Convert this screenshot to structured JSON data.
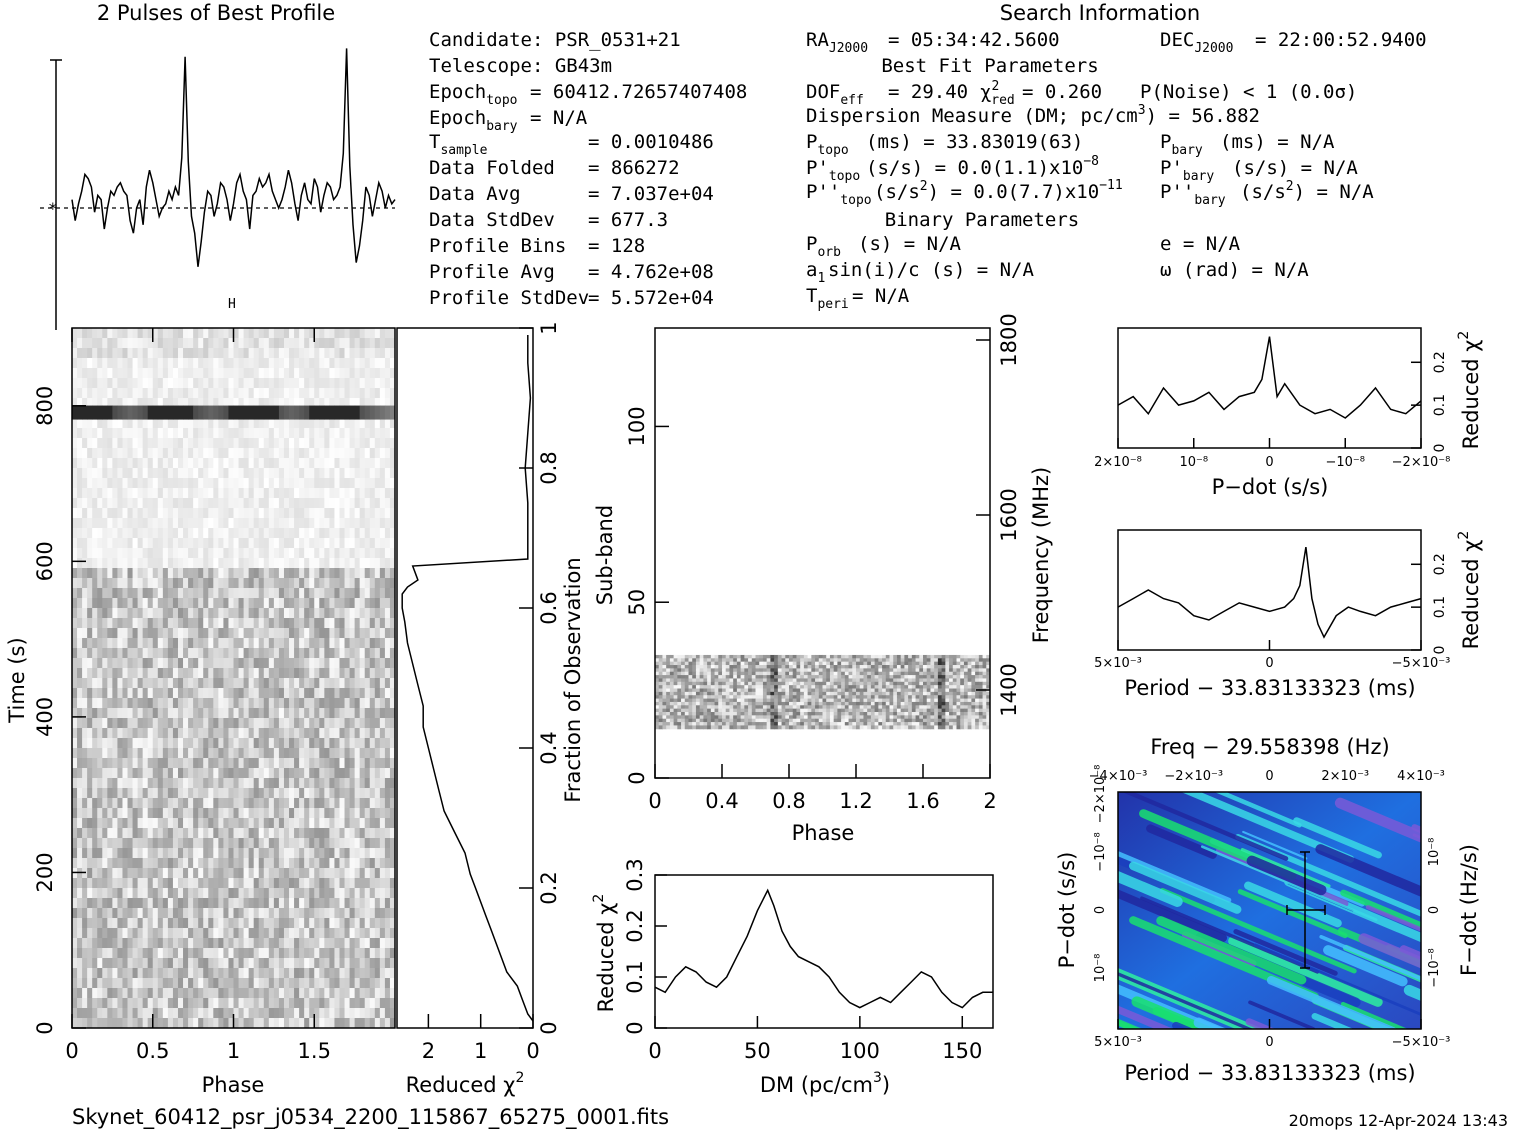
{
  "header": {
    "profile_title": "2 Pulses of Best Profile",
    "search_title": "Search Information",
    "best_fit_title": "Best Fit Parameters",
    "binary_title": "Binary Parameters"
  },
  "info_left": [
    {
      "k": "Candidate:  PSR_0531+21",
      "v": ""
    },
    {
      "k": "Telescope:  GB43m",
      "v": ""
    },
    {
      "k": "Epoch_topo",
      "sub": "topo",
      "v": "= 60412.72657407408"
    },
    {
      "k": "Epoch_bary",
      "sub": "bary",
      "v": "= N/A"
    },
    {
      "k": "T_sample",
      "sub": "sample",
      "v": "=  0.0010486"
    },
    {
      "k": "Data Folded",
      "v": "=  866272"
    },
    {
      "k": "Data Avg",
      "v": "=  7.037e+04"
    },
    {
      "k": "Data StdDev",
      "v": "=  677.3"
    },
    {
      "k": "Profile Bins",
      "v": "=  128"
    },
    {
      "k": "Profile Avg",
      "v": "=  4.762e+08"
    },
    {
      "k": "Profile StdDev",
      "v": "=  5.572e+04"
    }
  ],
  "info_mid": {
    "ra": "RA",
    "ra_sub": "J2000",
    "ra_val": "= 05:34:42.5600",
    "dec": "DEC",
    "dec_sub": "J2000",
    "dec_val": "= 22:00:52.9400",
    "dof": "DOF",
    "dof_sub": "eff",
    "dof_val": "= 29.40",
    "chi_val": "= 0.260",
    "pnoise": "P(Noise) < 1   (0.0σ)",
    "dm": "Dispersion Measure (DM; pc/cm",
    "dm_tail": ") = 56.882",
    "ptopo": "(ms) =  33.83019(63)",
    "pdot_topo": "(s/s) = 0.0(1.1)x10",
    "pdot_exp": "−8",
    "pddot_topo": "(s/s",
    "pddot_tail": ") = 0.0(7.7)x10",
    "pddot_exp": "−11",
    "porb": "(s) = N/A",
    "a1": "sin(i)/c (s) = N/A",
    "tperi": "= N/A",
    "pbary": "(ms) = N/A",
    "pdot_bary": "(s/s) = N/A",
    "pddot_bary": "(s/s",
    "pddot_bary_tail": ") = N/A",
    "ecc": "e = N/A",
    "omega": "ω (rad) = N/A"
  },
  "footer": {
    "filename": "Skynet_60412_psr_j0534_2200_115867_65275_0001.fits",
    "stamp": "20mops 12-Apr-2024 13:43"
  },
  "chart_data": [
    {
      "type": "line",
      "title": "2 Pulses of Best Profile",
      "xlabel": "",
      "ylabel": "",
      "xlim": [
        0,
        2
      ],
      "x": [
        0.0,
        0.02,
        0.04,
        0.06,
        0.08,
        0.1,
        0.12,
        0.14,
        0.16,
        0.18,
        0.2,
        0.22,
        0.24,
        0.26,
        0.28,
        0.3,
        0.32,
        0.34,
        0.36,
        0.38,
        0.4,
        0.42,
        0.44,
        0.46,
        0.48,
        0.5,
        0.52,
        0.54,
        0.56,
        0.58,
        0.6,
        0.62,
        0.64,
        0.66,
        0.68,
        0.7,
        0.72,
        0.74,
        0.76,
        0.78,
        0.8,
        0.82,
        0.84,
        0.86,
        0.88,
        0.9,
        0.92,
        0.94,
        0.96,
        0.98,
        1.0,
        1.02,
        1.04,
        1.06,
        1.08,
        1.1,
        1.12,
        1.14,
        1.16,
        1.18,
        1.2,
        1.22,
        1.24,
        1.26,
        1.28,
        1.3,
        1.32,
        1.34,
        1.36,
        1.38,
        1.4,
        1.42,
        1.44,
        1.46,
        1.48,
        1.5,
        1.52,
        1.54,
        1.56,
        1.58,
        1.6,
        1.62,
        1.64,
        1.66,
        1.68,
        1.7,
        1.72,
        1.74,
        1.76,
        1.78,
        1.8,
        1.82,
        1.84,
        1.86,
        1.88,
        1.9,
        1.92,
        1.94,
        1.96,
        1.98,
        2.0
      ],
      "y": [
        0.2,
        -0.3,
        0.1,
        0.4,
        0.8,
        0.7,
        0.5,
        -0.1,
        0.3,
        0.2,
        -0.5,
        0.0,
        0.4,
        0.3,
        0.5,
        0.6,
        0.4,
        0.3,
        -0.3,
        -0.6,
        0.0,
        0.2,
        -0.4,
        0.5,
        0.9,
        0.6,
        0.2,
        -0.2,
        0.0,
        0.1,
        0.4,
        0.2,
        0.5,
        0.3,
        1.2,
        3.6,
        1.1,
        -0.2,
        -0.6,
        -1.4,
        -0.8,
        -0.1,
        0.4,
        0.3,
        -0.2,
        0.1,
        0.6,
        0.5,
        0.2,
        -0.3,
        0.1,
        0.6,
        0.8,
        0.4,
        0.2,
        -0.5,
        0.3,
        0.4,
        0.7,
        0.5,
        0.6,
        0.8,
        0.4,
        0.2,
        0.0,
        0.2,
        0.5,
        0.9,
        0.6,
        0.1,
        -0.3,
        0.3,
        0.6,
        0.2,
        0.1,
        0.7,
        0.5,
        -0.1,
        0.3,
        0.6,
        0.5,
        0.2,
        0.3,
        0.5,
        1.3,
        3.8,
        1.0,
        -0.4,
        -1.3,
        -0.9,
        -0.3,
        0.5,
        0.3,
        -0.2,
        0.2,
        0.6,
        0.4,
        0.0,
        0.3,
        0.1,
        0.2
      ]
    },
    {
      "type": "heatmap",
      "xlabel": "Phase",
      "ylabel": "Time (s)",
      "y2label": "Fraction of Observation",
      "xlim": [
        0,
        2
      ],
      "ylim": [
        0,
        900
      ],
      "xticks": [
        "0",
        "0.5",
        "1",
        "1.5"
      ],
      "yticks": [
        "0",
        "200",
        "400",
        "600",
        "800"
      ],
      "y2ticks": [
        "0",
        "0.2",
        "0.4",
        "0.6",
        "0.8",
        "1"
      ],
      "dark_band_time": 790,
      "bright_region_time": [
        600,
        785
      ]
    },
    {
      "type": "line",
      "xlabel": "Reduced χ²",
      "xticks": [
        "2",
        "1",
        "0"
      ],
      "xlim": [
        2.6,
        0
      ],
      "ylim": [
        0,
        1
      ],
      "x": [
        0.0,
        0.1,
        0.2,
        0.3,
        0.5,
        0.6,
        0.7,
        0.8,
        0.9,
        1.0,
        1.1,
        1.2,
        1.3,
        1.5,
        1.7,
        1.8,
        1.9,
        2.0,
        2.1,
        2.1,
        2.2,
        2.3,
        2.4,
        2.45,
        2.5,
        2.5,
        2.4,
        2.2,
        2.3,
        0.1,
        0.1,
        0.1,
        0.15,
        0.1,
        0.05,
        0.1,
        0.1
      ],
      "y": [
        0.01,
        0.02,
        0.04,
        0.06,
        0.08,
        0.1,
        0.12,
        0.14,
        0.16,
        0.18,
        0.2,
        0.22,
        0.25,
        0.28,
        0.31,
        0.34,
        0.37,
        0.4,
        0.43,
        0.46,
        0.49,
        0.52,
        0.55,
        0.58,
        0.6,
        0.62,
        0.63,
        0.64,
        0.66,
        0.67,
        0.7,
        0.75,
        0.8,
        0.85,
        0.9,
        0.95,
        0.99
      ]
    },
    {
      "type": "heatmap",
      "xlabel": "Phase",
      "ylabel": "Sub-band",
      "y2label": "Frequency (MHz)",
      "xlim": [
        0,
        2
      ],
      "ylim": [
        0,
        128
      ],
      "xticks": [
        "0",
        "0.4",
        "0.8",
        "1.2",
        "1.6",
        "2"
      ],
      "yticks": [
        "0",
        "50",
        "100"
      ],
      "y2ticks": [
        "1400",
        "1600",
        "1800"
      ],
      "data_subbands": [
        14,
        35
      ]
    },
    {
      "type": "line",
      "xlabel": "DM (pc/cm³)",
      "ylabel": "Reduced χ²",
      "xlim": [
        0,
        165
      ],
      "ylim": [
        0,
        0.3
      ],
      "xticks": [
        "0",
        "50",
        "100",
        "150"
      ],
      "yticks": [
        "0",
        "0.1",
        "0.2",
        "0.3"
      ],
      "x": [
        0,
        5,
        10,
        15,
        20,
        25,
        30,
        35,
        40,
        45,
        50,
        55,
        58,
        62,
        66,
        70,
        75,
        80,
        85,
        90,
        95,
        100,
        105,
        110,
        115,
        120,
        125,
        130,
        135,
        140,
        145,
        150,
        155,
        160,
        165
      ],
      "y": [
        0.08,
        0.07,
        0.1,
        0.12,
        0.11,
        0.09,
        0.08,
        0.1,
        0.14,
        0.18,
        0.23,
        0.27,
        0.24,
        0.19,
        0.16,
        0.14,
        0.13,
        0.12,
        0.1,
        0.07,
        0.05,
        0.04,
        0.05,
        0.06,
        0.05,
        0.07,
        0.09,
        0.11,
        0.1,
        0.07,
        0.05,
        0.04,
        0.06,
        0.07,
        0.07
      ]
    },
    {
      "type": "line",
      "xlabel": "P−dot (s/s)",
      "ylabel": "Reduced χ²",
      "xticks": [
        "2×10⁻⁸",
        "10⁻⁸",
        "0",
        "−10⁻⁸",
        "−2×10⁻⁸"
      ],
      "yticks": [
        "0",
        "0.1",
        "0.2"
      ],
      "xlim": [
        2,
        -2
      ],
      "ylim": [
        0,
        0.28
      ],
      "x": [
        2.0,
        1.8,
        1.6,
        1.4,
        1.2,
        1.0,
        0.8,
        0.6,
        0.4,
        0.2,
        0.1,
        0.0,
        -0.1,
        -0.2,
        -0.4,
        -0.6,
        -0.8,
        -1.0,
        -1.2,
        -1.4,
        -1.6,
        -1.8,
        -2.0
      ],
      "y": [
        0.1,
        0.12,
        0.08,
        0.14,
        0.1,
        0.11,
        0.13,
        0.09,
        0.12,
        0.13,
        0.16,
        0.26,
        0.12,
        0.15,
        0.1,
        0.08,
        0.09,
        0.07,
        0.1,
        0.14,
        0.09,
        0.08,
        0.11
      ]
    },
    {
      "type": "line",
      "title": "",
      "xlabel": "Period − 33.83133323 (ms)",
      "ylabel": "Reduced χ²",
      "xticks": [
        "5×10⁻³",
        "0",
        "−5×10⁻³"
      ],
      "yticks": [
        "0",
        "0.1",
        "0.2"
      ],
      "xlim": [
        5,
        -5
      ],
      "ylim": [
        0,
        0.28
      ],
      "x": [
        5.0,
        4.5,
        4.0,
        3.5,
        3.0,
        2.5,
        2.0,
        1.5,
        1.0,
        0.5,
        0.0,
        -0.5,
        -0.8,
        -1.0,
        -1.2,
        -1.4,
        -1.6,
        -1.8,
        -2.2,
        -2.6,
        -3.0,
        -3.5,
        -4.0,
        -4.5,
        -5.0
      ],
      "y": [
        0.1,
        0.12,
        0.14,
        0.12,
        0.11,
        0.08,
        0.07,
        0.09,
        0.11,
        0.1,
        0.09,
        0.1,
        0.12,
        0.15,
        0.24,
        0.12,
        0.06,
        0.03,
        0.08,
        0.1,
        0.09,
        0.08,
        0.1,
        0.11,
        0.12
      ]
    },
    {
      "type": "heatmap",
      "title": "Freq − 29.558398 (Hz)",
      "xlabel": "Period − 33.83133323 (ms)",
      "ylabel": "P−dot (s/s)",
      "y2label": "F−dot (Hz/s)",
      "xticks": [
        "5×10⁻³",
        "0",
        "−5×10⁻³"
      ],
      "x2ticks": [
        "−4×10⁻³",
        "−2×10⁻³",
        "0",
        "2×10⁻³",
        "4×10⁻³"
      ],
      "yticks": [
        "10⁻⁸",
        "0",
        "−10⁻⁸",
        "−2×10⁻⁸"
      ],
      "y2ticks": [
        "10⁻⁸",
        "0",
        "−10⁻⁸"
      ],
      "best_fit_marker": "cross"
    }
  ]
}
